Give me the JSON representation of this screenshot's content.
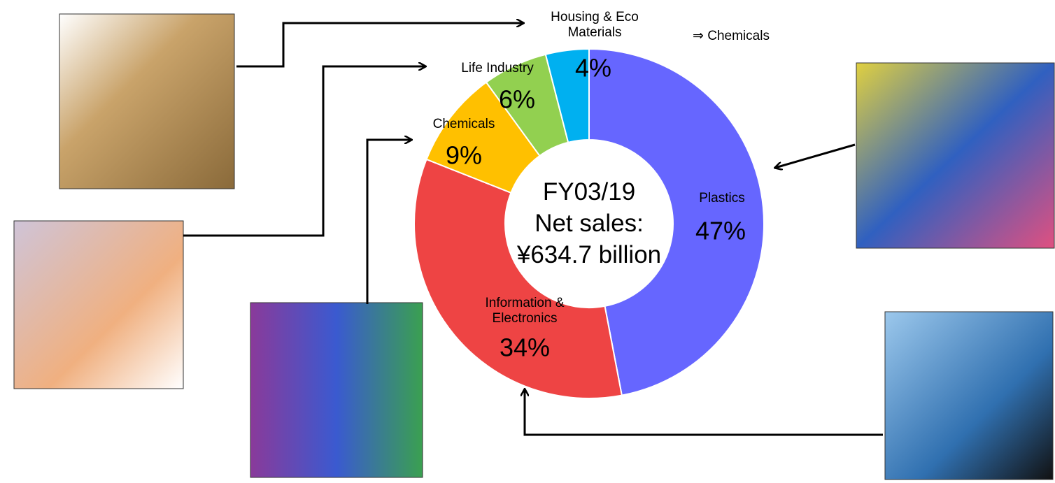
{
  "chart_data": {
    "type": "donut",
    "categories": [
      "Plastics",
      "Information & Electronics",
      "Chemicals",
      "Life Industry",
      "Housing & Eco Materials"
    ],
    "values": [
      47,
      34,
      9,
      6,
      4
    ],
    "value_labels": [
      "47%",
      "34%",
      "9%",
      "6%",
      "4%"
    ],
    "colors": [
      "#6666ff",
      "#ee4444",
      "#ffc000",
      "#92d050",
      "#00b0f0"
    ],
    "center_text": [
      "FY03/19",
      "Net sales:",
      "¥634.7 billion"
    ],
    "annotation": "⇒ Chemicals"
  }
}
